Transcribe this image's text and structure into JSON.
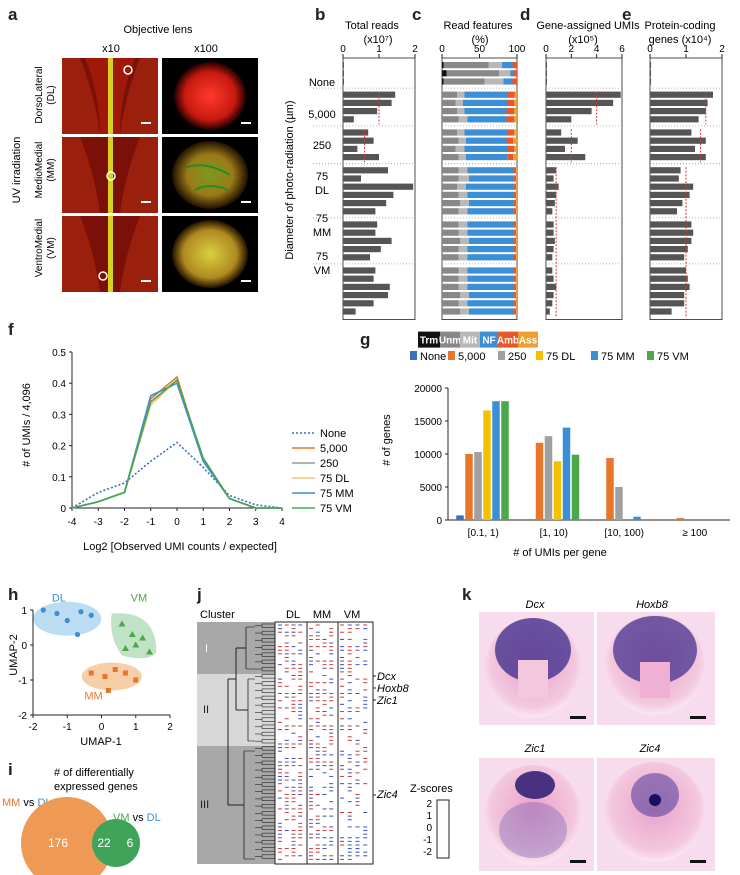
{
  "panel_letters": [
    "a",
    "b",
    "c",
    "d",
    "e",
    "f",
    "g",
    "h",
    "i",
    "j",
    "k"
  ],
  "panel_a": {
    "title": "Objective lens",
    "col_labels": [
      "x10",
      "x100"
    ],
    "side_label": "UV irradiation",
    "row_labels": [
      {
        "name": "DorsoLateral",
        "abbr": "(DL)"
      },
      {
        "name": "MedioMedial",
        "abbr": "(MM)"
      },
      {
        "name": "VentroMedial",
        "abbr": "(VM)"
      }
    ]
  },
  "y_axis_label": "Diameter of photo-radiation (µm)",
  "group_labels": [
    [
      "None"
    ],
    [
      "5,000"
    ],
    [
      "250"
    ],
    [
      "75",
      "DL"
    ],
    [
      "75",
      "MM"
    ],
    [
      "75",
      "VM"
    ]
  ],
  "panel_b": {
    "title_lines": [
      "Total reads",
      "(x10⁷)"
    ],
    "ticks": [
      "0",
      "1",
      "2"
    ]
  },
  "panel_c": {
    "title_lines": [
      "Read features",
      "(%)"
    ],
    "ticks": [
      "0",
      "50",
      "100"
    ],
    "legend": [
      {
        "label": "Trm",
        "color": "#111111"
      },
      {
        "label": "Unm",
        "color": "#888888"
      },
      {
        "label": "Mit",
        "color": "#b8b8b8"
      },
      {
        "label": "NF",
        "color": "#3a8fd6"
      },
      {
        "label": "Amb",
        "color": "#e8572a"
      },
      {
        "label": "Ass",
        "color": "#f0a030"
      }
    ]
  },
  "panel_d": {
    "title_lines": [
      "Gene-assigned UMIs",
      "(x10⁵)"
    ],
    "ticks": [
      "0",
      "2",
      "4",
      "6"
    ]
  },
  "panel_e": {
    "title_lines": [
      "Protein-coding",
      "genes (x10⁴)"
    ],
    "ticks": [
      "0",
      "1",
      "2"
    ]
  },
  "chart_data": [
    {
      "type": "bar",
      "panel": "b",
      "title": "Total reads (x10⁷)",
      "xlim": [
        0,
        2
      ],
      "groups": [
        "None",
        "5,000",
        "250",
        "75 DL",
        "75 MM",
        "75 VM"
      ],
      "values": [
        [
          0.02,
          0.02,
          0.02
        ],
        [
          1.45,
          1.35,
          0.95,
          0.3
        ],
        [
          0.7,
          0.85,
          0.4,
          1.0
        ],
        [
          1.25,
          0.5,
          1.95,
          1.4,
          1.2,
          0.9
        ],
        [
          0.95,
          0.9,
          1.35,
          1.05,
          0.75
        ],
        [
          0.9,
          0.85,
          1.3,
          1.25,
          0.85,
          0.35
        ]
      ],
      "ref_lines": [
        1.0,
        0.6
      ]
    },
    {
      "type": "bar",
      "panel": "d",
      "title": "Gene-assigned UMIs (x10⁵)",
      "xlim": [
        0,
        6
      ],
      "groups": [
        "None",
        "5,000",
        "250",
        "75 DL",
        "75 MM",
        "75 VM"
      ],
      "values": [
        [
          0.05,
          0.05,
          0.05
        ],
        [
          5.9,
          5.3,
          3.6,
          2.0
        ],
        [
          1.2,
          2.5,
          1.5,
          3.1
        ],
        [
          0.8,
          0.6,
          1.0,
          0.8,
          0.7,
          0.5
        ],
        [
          0.6,
          0.6,
          0.7,
          0.6,
          0.5
        ],
        [
          0.5,
          0.6,
          0.8,
          0.6,
          0.5,
          0.3
        ]
      ],
      "ref_lines": [
        4.0,
        2.0,
        0.8
      ]
    },
    {
      "type": "bar",
      "panel": "e",
      "title": "Protein-coding genes (x10⁴)",
      "xlim": [
        0,
        2
      ],
      "groups": [
        "None",
        "5,000",
        "250",
        "75 DL",
        "75 MM",
        "75 VM"
      ],
      "values": [
        [
          0.03,
          0.03,
          0.03
        ],
        [
          1.75,
          1.6,
          1.55,
          1.35
        ],
        [
          1.15,
          1.55,
          1.25,
          1.55
        ],
        [
          0.85,
          0.8,
          1.2,
          1.1,
          0.9,
          0.75
        ],
        [
          1.15,
          1.2,
          1.15,
          1.05,
          0.95
        ],
        [
          1.0,
          1.05,
          1.1,
          0.95,
          0.95,
          0.6
        ]
      ],
      "ref_lines": [
        1.55,
        1.4,
        1.0
      ]
    },
    {
      "type": "bar",
      "panel": "c",
      "title": "Read features (%)",
      "stacked": true,
      "xlim": [
        0,
        100
      ],
      "series_names": [
        "Trm",
        "Unm",
        "Mit",
        "NF",
        "Amb",
        "Ass"
      ],
      "groups": [
        "None",
        "5,000",
        "250",
        "75 DL",
        "75 MM",
        "75 VM"
      ],
      "values": [
        [
          [
            2,
            60,
            18,
            14,
            6,
            0
          ],
          [
            6,
            70,
            15,
            5,
            4,
            0
          ],
          [
            2,
            55,
            25,
            12,
            6,
            0
          ]
        ],
        [
          [
            0,
            20,
            10,
            58,
            9,
            3
          ],
          [
            0,
            18,
            10,
            60,
            8,
            4
          ],
          [
            0,
            20,
            10,
            56,
            10,
            4
          ],
          [
            0,
            22,
            12,
            52,
            10,
            4
          ]
        ],
        [
          [
            0,
            20,
            10,
            58,
            8,
            4
          ],
          [
            0,
            22,
            10,
            54,
            9,
            5
          ],
          [
            0,
            18,
            12,
            58,
            8,
            4
          ],
          [
            0,
            22,
            10,
            55,
            8,
            5
          ]
        ],
        [
          [
            0,
            22,
            12,
            62,
            3,
            1
          ],
          [
            0,
            22,
            14,
            60,
            3,
            1
          ],
          [
            0,
            20,
            12,
            64,
            3,
            1
          ],
          [
            0,
            22,
            12,
            62,
            3,
            1
          ],
          [
            0,
            24,
            12,
            60,
            3,
            1
          ],
          [
            0,
            22,
            12,
            62,
            3,
            1
          ]
        ],
        [
          [
            0,
            22,
            12,
            62,
            3,
            1
          ],
          [
            0,
            22,
            12,
            62,
            3,
            1
          ],
          [
            0,
            24,
            12,
            60,
            3,
            1
          ],
          [
            0,
            22,
            12,
            62,
            3,
            1
          ],
          [
            0,
            22,
            12,
            62,
            3,
            1
          ]
        ],
        [
          [
            0,
            22,
            12,
            62,
            3,
            1
          ],
          [
            0,
            22,
            12,
            62,
            3,
            1
          ],
          [
            0,
            22,
            12,
            62,
            3,
            1
          ],
          [
            0,
            24,
            12,
            60,
            3,
            1
          ],
          [
            0,
            22,
            12,
            62,
            3,
            1
          ],
          [
            0,
            24,
            12,
            60,
            3,
            1
          ]
        ]
      ]
    },
    {
      "type": "line",
      "panel": "f",
      "ylabel": "# of UMIs / 4,096",
      "xlabel": "Log2 [Observed UMI counts / expected]",
      "x": [
        -4,
        -3,
        -2,
        -1,
        0,
        1,
        2,
        3,
        4
      ],
      "xlim": [
        -4,
        4
      ],
      "ylim": [
        0,
        0.5
      ],
      "series": [
        {
          "name": "None",
          "color": "#3a6fc4",
          "dash": true,
          "values": [
            0.0,
            0.05,
            0.08,
            0.15,
            0.21,
            0.13,
            0.04,
            0.01,
            0.0
          ]
        },
        {
          "name": "5,000",
          "color": "#e8762a",
          "values": [
            0.0,
            0.02,
            0.05,
            0.35,
            0.42,
            0.15,
            0.03,
            0.0,
            0.0
          ]
        },
        {
          "name": "250",
          "color": "#999999",
          "values": [
            0.0,
            0.02,
            0.05,
            0.34,
            0.41,
            0.15,
            0.03,
            0.0,
            0.0
          ]
        },
        {
          "name": "75 DL",
          "color": "#f5c27a",
          "values": [
            0.0,
            0.02,
            0.05,
            0.33,
            0.41,
            0.15,
            0.03,
            0.0,
            0.0
          ]
        },
        {
          "name": "75 MM",
          "color": "#3a8fd6",
          "values": [
            0.0,
            0.02,
            0.05,
            0.36,
            0.4,
            0.15,
            0.03,
            0.0,
            0.0
          ]
        },
        {
          "name": "75 VM",
          "color": "#4aa84a",
          "values": [
            0.0,
            0.02,
            0.05,
            0.34,
            0.41,
            0.16,
            0.03,
            0.0,
            0.0
          ]
        }
      ]
    },
    {
      "type": "bar",
      "panel": "g",
      "ylabel": "# of genes",
      "xlabel": "# of UMIs per gene",
      "categories": [
        "[0.1, 1)",
        "[1, 10)",
        "[10, 100)",
        "≥ 100"
      ],
      "ylim": [
        0,
        20000
      ],
      "series": [
        {
          "name": "None",
          "color": "#3a6fc4",
          "values": [
            700,
            0,
            0,
            0
          ]
        },
        {
          "name": "5,000",
          "color": "#e8762a",
          "values": [
            10000,
            11700,
            9400,
            300
          ]
        },
        {
          "name": "250",
          "color": "#a0a0a0",
          "values": [
            10300,
            12700,
            5000,
            0
          ]
        },
        {
          "name": "75 DL",
          "color": "#f5c000",
          "values": [
            16600,
            8900,
            0,
            0
          ]
        },
        {
          "name": "75 MM",
          "color": "#3a8fd6",
          "values": [
            18000,
            14000,
            500,
            0
          ]
        },
        {
          "name": "75 VM",
          "color": "#4aa84a",
          "values": [
            18000,
            9900,
            0,
            0
          ]
        }
      ]
    },
    {
      "type": "scatter",
      "panel": "h",
      "xlabel": "UMAP-1",
      "ylabel": "UMAP-2",
      "xlim": [
        -2,
        2
      ],
      "ylim": [
        -2,
        1
      ],
      "series": [
        {
          "name": "DL",
          "color": "#3a8fd6",
          "marker": "circle",
          "x": [
            -1.7,
            -1.3,
            -1.0,
            -0.6,
            -0.3,
            -0.7
          ],
          "y": [
            1.0,
            0.9,
            0.7,
            0.95,
            0.85,
            0.3
          ]
        },
        {
          "name": "VM",
          "color": "#4aa84a",
          "marker": "triangle",
          "x": [
            0.6,
            0.9,
            1.2,
            1.0,
            1.4,
            0.7
          ],
          "y": [
            0.6,
            0.3,
            0.2,
            0.0,
            -0.2,
            -0.1
          ]
        },
        {
          "name": "MM",
          "color": "#e8762a",
          "marker": "square",
          "x": [
            -0.3,
            0.1,
            0.4,
            0.7,
            1.0,
            0.2
          ],
          "y": [
            -0.8,
            -0.9,
            -0.7,
            -0.8,
            -1.0,
            -1.3
          ]
        }
      ]
    }
  ],
  "panel_f": {
    "yticks": [
      "0",
      "0.1",
      "0.2",
      "0.3",
      "0.4",
      "0.5"
    ],
    "xticks": [
      "-4",
      "-3",
      "-2",
      "-1",
      "0",
      "1",
      "2",
      "3",
      "4"
    ]
  },
  "panel_g": {
    "yticks": [
      "0",
      "5000",
      "10000",
      "15000",
      "20000"
    ]
  },
  "panel_h": {
    "xticks": [
      "-2",
      "-1",
      "0",
      "1",
      "2"
    ],
    "yticks": [
      "1",
      "0",
      "-1",
      "-2"
    ],
    "cluster_labels": [
      "DL",
      "VM",
      "MM"
    ]
  },
  "panel_i": {
    "title_lines": [
      "# of differentially",
      "expressed genes"
    ],
    "left_pair": [
      "MM",
      "vs",
      "DL"
    ],
    "right_pair": [
      "VM",
      "vs",
      "DL"
    ],
    "counts": [
      "176",
      "22",
      "6"
    ]
  },
  "panel_j": {
    "cluster_header": "Cluster",
    "cols": [
      "DL",
      "MM",
      "VM"
    ],
    "clusters": [
      "I",
      "II",
      "III"
    ],
    "genes": [
      "Dcx",
      "Hoxb8",
      "Zic1",
      "Zic4"
    ],
    "zscore_title": "Z-scores",
    "zscore_ticks": [
      "2",
      "1",
      "0",
      "-1",
      "-2"
    ]
  },
  "panel_k": {
    "titles": [
      "Dcx",
      "Hoxb8",
      "Zic1",
      "Zic4"
    ]
  },
  "colors": {
    "bar": "#555555",
    "ref": "#dd3333",
    "grid": "#999999",
    "heat_pos": "#c83c3c",
    "heat_neg": "#3a4fc8"
  }
}
